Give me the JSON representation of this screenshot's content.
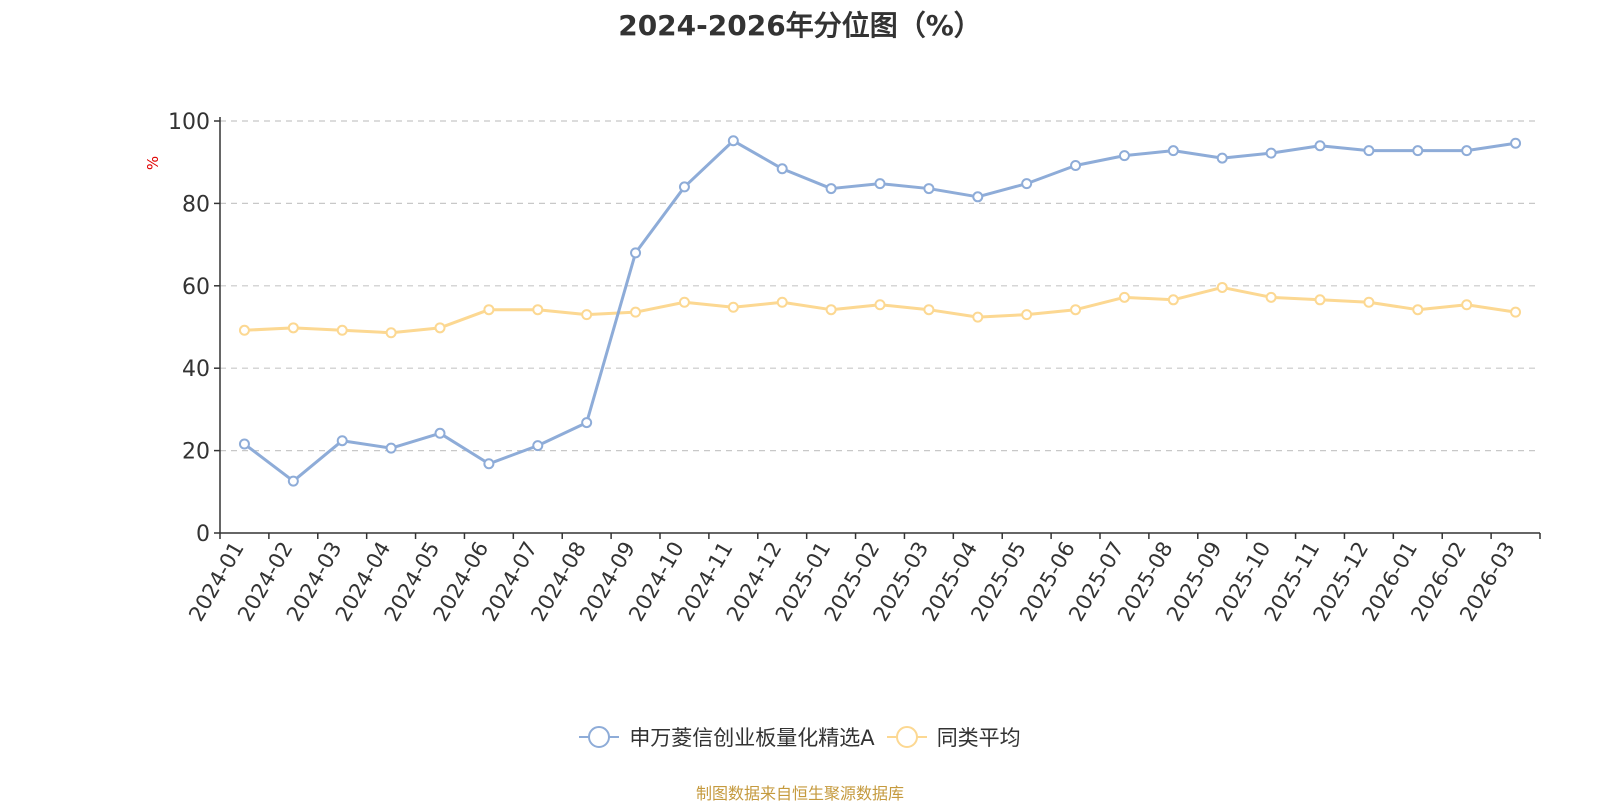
{
  "chart_data": {
    "type": "line",
    "title": "2024-2026年分位图（%）",
    "ylabel": "%",
    "ylim": [
      0,
      100
    ],
    "yticks": [
      0,
      20,
      40,
      60,
      80,
      100
    ],
    "grid": true,
    "legend_position": "bottom-center",
    "categories": [
      "2024-01",
      "2024-02",
      "2024-03",
      "2024-04",
      "2024-05",
      "2024-06",
      "2024-07",
      "2024-08",
      "2024-09",
      "2024-10",
      "2024-11",
      "2024-12",
      "2025-01",
      "2025-02",
      "2025-03",
      "2025-04",
      "2025-05",
      "2025-06",
      "2025-07",
      "2025-08",
      "2025-09",
      "2025-10",
      "2025-11",
      "2025-12",
      "2026-01",
      "2026-02",
      "2026-03"
    ],
    "series": [
      {
        "name": "申万菱信创业板量化精选A",
        "color": "#8eacd8",
        "values": [
          21.6,
          12.6,
          22.4,
          20.6,
          24.2,
          16.8,
          21.2,
          26.8,
          68.0,
          84.0,
          95.2,
          88.4,
          83.6,
          84.8,
          83.6,
          81.6,
          84.8,
          89.2,
          91.6,
          92.8,
          91.0,
          92.2,
          94.0,
          92.8,
          92.8,
          92.8,
          94.6
        ]
      },
      {
        "name": "同类平均",
        "color": "#fcd892",
        "values": [
          49.2,
          49.8,
          49.2,
          48.6,
          49.8,
          54.2,
          54.2,
          53.0,
          53.6,
          56.0,
          54.8,
          56.0,
          54.2,
          55.4,
          54.2,
          52.4,
          53.0,
          54.2,
          57.2,
          56.6,
          59.6,
          57.2,
          56.6,
          56.0,
          54.2,
          55.4,
          53.6
        ]
      }
    ]
  },
  "source_note": "制图数据来自恒生聚源数据库"
}
